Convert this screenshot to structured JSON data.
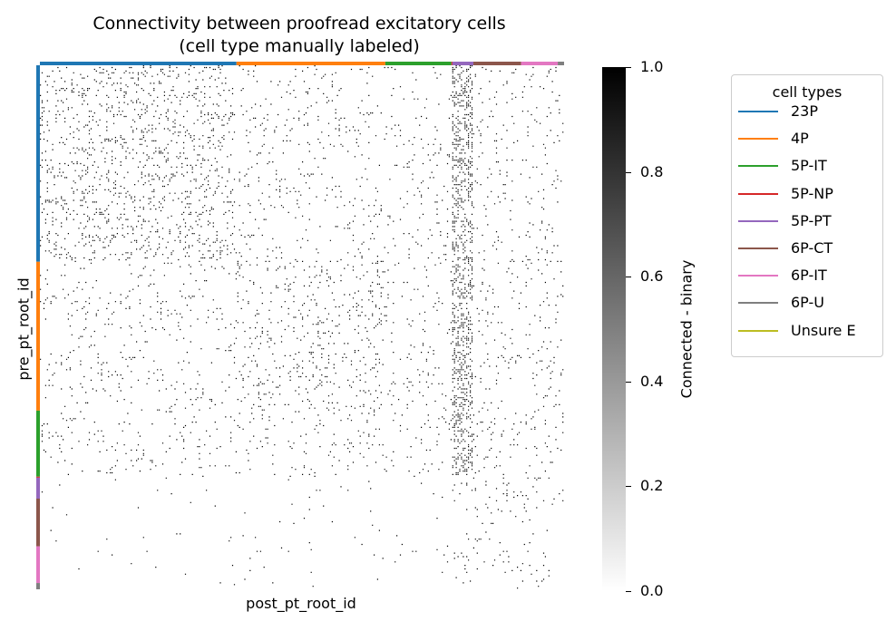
{
  "chart_data": {
    "type": "heatmap",
    "title": "Connectivity between proofread excitatory cells",
    "subtitle": "(cell type manually labeled)",
    "xlabel": "post_pt_root_id",
    "ylabel": "pre_pt_root_id",
    "value_range": [
      0.0,
      1.0
    ],
    "colormap": "white to black (gray_r)",
    "colorbar": {
      "label": "Connected - binary",
      "ticks": [
        "0.0",
        "0.2",
        "0.4",
        "0.6",
        "0.8",
        "1.0"
      ],
      "tick_values": [
        0.0,
        0.2,
        0.4,
        0.6,
        0.8,
        1.0
      ]
    },
    "legend": {
      "title": "cell types",
      "placement": "outside right",
      "entries": [
        {
          "label": "23P",
          "color": "#1f77b4"
        },
        {
          "label": "4P",
          "color": "#ff7f0e"
        },
        {
          "label": "5P-IT",
          "color": "#2ca02c"
        },
        {
          "label": "5P-NP",
          "color": "#d62728"
        },
        {
          "label": "5P-PT",
          "color": "#9467bd"
        },
        {
          "label": "6P-CT",
          "color": "#8c564b"
        },
        {
          "label": "6P-IT",
          "color": "#e377c2"
        },
        {
          "label": "6P-U",
          "color": "#7f7f7f"
        },
        {
          "label": "Unsure E",
          "color": "#bcbd22"
        }
      ]
    },
    "cell_type_blocks_fraction": [
      {
        "type": "23P",
        "fraction": 0.375
      },
      {
        "type": "4P",
        "fraction": 0.284
      },
      {
        "type": "5P-IT",
        "fraction": 0.126
      },
      {
        "type": "5P-NP",
        "fraction": 0.002
      },
      {
        "type": "5P-PT",
        "fraction": 0.04
      },
      {
        "type": "6P-CT",
        "fraction": 0.091
      },
      {
        "type": "6P-IT",
        "fraction": 0.07
      },
      {
        "type": "6P-U",
        "fraction": 0.012
      },
      {
        "type": "Unsure E",
        "fraction": 0.0
      }
    ],
    "connection_density": {
      "23P->23P": 0.09,
      "4P->4P": 0.06,
      "23P->5P-PT": 0.3,
      "excitatory_upper_block_background": 0.03,
      "deep_layer_rows": 0.006
    }
  }
}
